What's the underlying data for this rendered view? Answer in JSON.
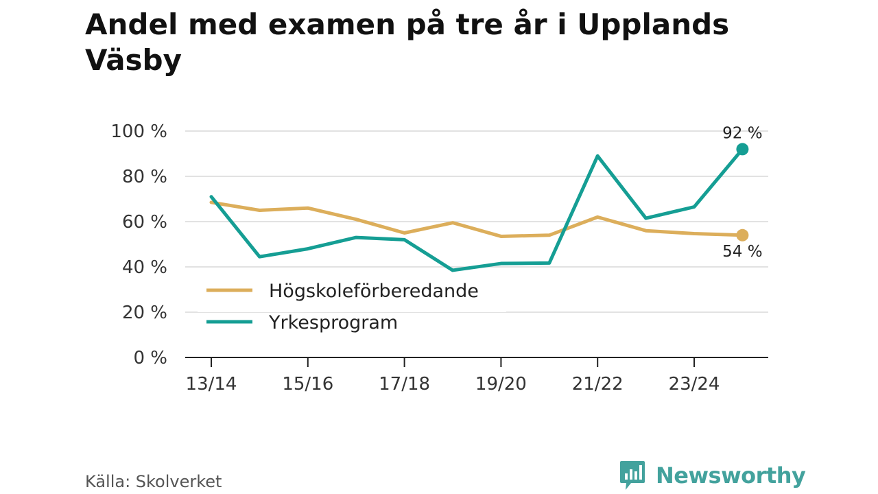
{
  "chart_data": {
    "type": "line",
    "title": "Andel med examen på tre år i Upplands Väsby",
    "x": [
      "13/14",
      "14/15",
      "15/16",
      "16/17",
      "17/18",
      "18/19",
      "19/20",
      "20/21",
      "21/22",
      "22/23",
      "23/24",
      "24/25"
    ],
    "x_tick_labels": [
      "13/14",
      "15/16",
      "17/18",
      "19/20",
      "21/22",
      "23/24"
    ],
    "ylim": [
      0,
      100
    ],
    "y_ticks": [
      0,
      20,
      40,
      60,
      80,
      100
    ],
    "y_tick_labels": [
      "0 %",
      "20 %",
      "40 %",
      "60 %",
      "80 %",
      "100 %"
    ],
    "grid": true,
    "legend_position": "bottom-left",
    "series": [
      {
        "name": "Högskoleförberedande",
        "color": "#dcae5b",
        "values": [
          68.5,
          65,
          66,
          61,
          55,
          59.5,
          53.5,
          54,
          62,
          56,
          54.7,
          54
        ],
        "end_label": "54 %"
      },
      {
        "name": "Yrkesprogram",
        "color": "#159e94",
        "values": [
          71,
          44.5,
          48,
          53,
          52,
          38.5,
          41.5,
          41.7,
          89,
          61.5,
          66.5,
          92
        ],
        "end_label": "92 %"
      }
    ]
  },
  "source": "Källa: Skolverket",
  "brand": "Newsworthy"
}
